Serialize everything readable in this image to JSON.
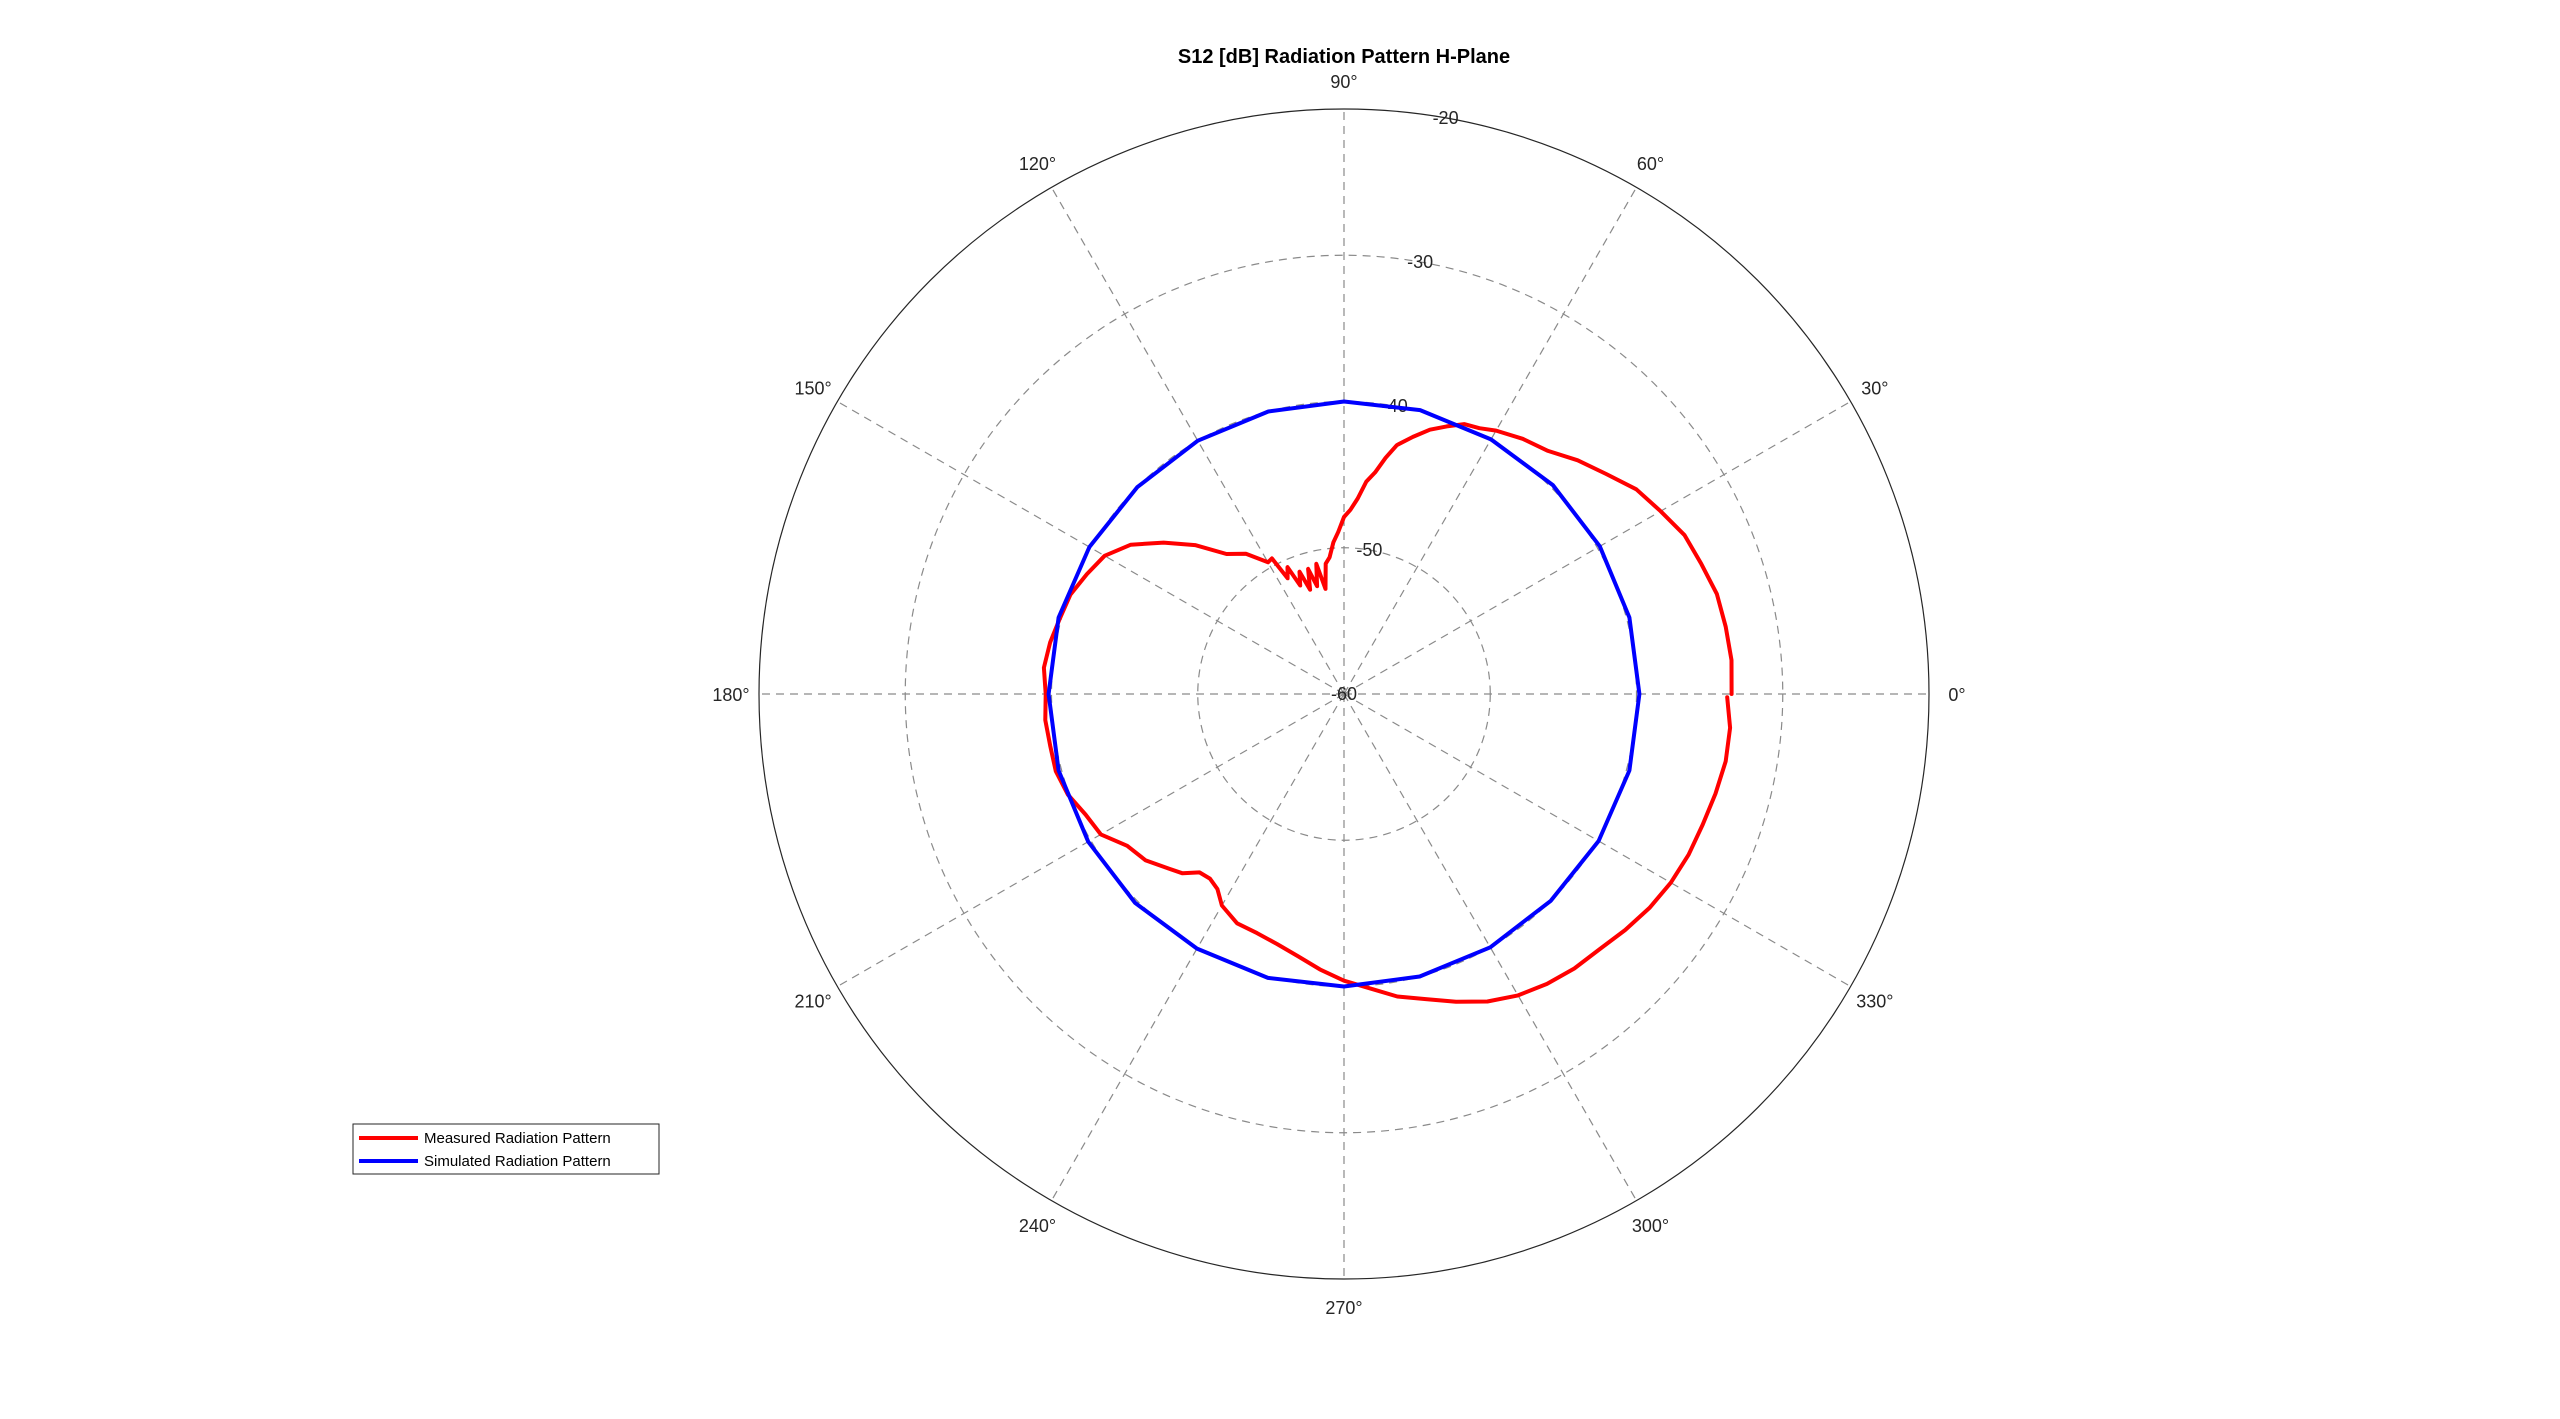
{
  "chart_data": {
    "type": "polar-line",
    "title": "S12 [dB] Radiation Pattern H-Plane",
    "angle_unit": "degrees",
    "angle_ticks": [
      0,
      30,
      60,
      90,
      120,
      150,
      180,
      210,
      240,
      270,
      300,
      330
    ],
    "angle_tick_labels": [
      "0°",
      "30°",
      "60°",
      "90°",
      "120°",
      "150°",
      "180°",
      "210°",
      "240°",
      "270°",
      "300°",
      "330°"
    ],
    "rlim": [
      -60,
      -20
    ],
    "r_ticks": [
      -60,
      -50,
      -40,
      -30,
      -20
    ],
    "r_tick_labels": [
      "-60",
      "-50",
      "-40",
      "-30",
      "-20"
    ],
    "grid": true,
    "legend_position": "bottom-left",
    "series": [
      {
        "name": "Measured Radiation Pattern",
        "color": "#ff0000",
        "theta": [
          0,
          5,
          10,
          15,
          20,
          25,
          30,
          35,
          40,
          45,
          50,
          55,
          60,
          63,
          66,
          69,
          72,
          75,
          78,
          80,
          82,
          84,
          86,
          88,
          90,
          92,
          94,
          96,
          98,
          100,
          102,
          104,
          106,
          108,
          110,
          112,
          114,
          116,
          118,
          120,
          125,
          130,
          135,
          140,
          145,
          150,
          155,
          160,
          165,
          170,
          175,
          180,
          185,
          190,
          195,
          200,
          205,
          210,
          215,
          220,
          225,
          228,
          231,
          234,
          237,
          240,
          245,
          250,
          255,
          260,
          265,
          270,
          275,
          280,
          285,
          290,
          295,
          300,
          305,
          310,
          315,
          320,
          325,
          330,
          335,
          340,
          345,
          350,
          355,
          359.5
        ],
        "r": [
          -33.5,
          -33.4,
          -33.5,
          -33.6,
          -34.0,
          -34.3,
          -35.0,
          -35.6,
          -36.6,
          -37.4,
          -38.3,
          -38.7,
          -39.2,
          -39.6,
          -39.8,
          -40.4,
          -41.0,
          -41.8,
          -42.6,
          -43.6,
          -44.7,
          -45.4,
          -46.6,
          -47.4,
          -47.9,
          -48.9,
          -49.6,
          -50.6,
          -51.0,
          -52.7,
          -50.9,
          -52.4,
          -51.1,
          -52.5,
          -51.1,
          -52.0,
          -50.5,
          -51.2,
          -49.5,
          -49.6,
          -48.3,
          -47.5,
          -45.6,
          -43.9,
          -42.2,
          -41.1,
          -40.6,
          -40.1,
          -39.9,
          -39.6,
          -39.4,
          -39.6,
          -39.5,
          -39.6,
          -39.6,
          -39.9,
          -40.5,
          -40.8,
          -41.9,
          -42.3,
          -43.1,
          -43.5,
          -44.3,
          -44.4,
          -44.1,
          -43.3,
          -42.7,
          -42.6,
          -42.3,
          -41.8,
          -41.1,
          -40.4,
          -39.8,
          -39.0,
          -38.4,
          -37.6,
          -36.8,
          -36.2,
          -35.8,
          -35.5,
          -35.3,
          -34.9,
          -34.5,
          -34.2,
          -34.0,
          -33.9,
          -33.7,
          -33.5,
          -33.5,
          -33.8
        ]
      },
      {
        "name": "Simulated Radiation Pattern",
        "color": "#0000ff",
        "theta": [
          0,
          15,
          30,
          45,
          60,
          75,
          90,
          105,
          120,
          135,
          150,
          165,
          180,
          195,
          210,
          225,
          240,
          255,
          270,
          285,
          300,
          315,
          330,
          345
        ],
        "r": [
          -39.8,
          -39.8,
          -39.8,
          -39.8,
          -39.9,
          -39.9,
          -40.0,
          -40.0,
          -40.0,
          -40.0,
          -39.9,
          -39.8,
          -39.8,
          -39.8,
          -39.8,
          -39.8,
          -39.9,
          -39.9,
          -40.0,
          -40.0,
          -40.0,
          -40.0,
          -39.9,
          -39.8
        ]
      }
    ]
  }
}
